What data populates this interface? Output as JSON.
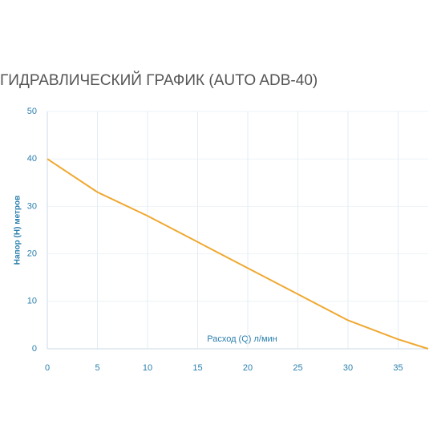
{
  "chart_data": {
    "type": "line",
    "title": "ГИДРАВЛИЧЕСКИЙ ГРАФИК (AUTO ADB-40)",
    "x_label": "Расход (Q) л/мин",
    "y_label": "Напор (H) метров",
    "x": [
      0,
      5,
      10,
      15,
      20,
      25,
      30,
      35,
      38
    ],
    "series": [
      {
        "name": "AUTO ADB-40",
        "color": "#f0a830",
        "values": [
          40,
          33,
          28,
          22.5,
          17,
          11.5,
          6,
          2,
          0
        ]
      }
    ],
    "xlim": [
      0,
      38
    ],
    "ylim": [
      0,
      50
    ],
    "xticks": [
      0,
      5,
      10,
      15,
      20,
      25,
      30,
      35
    ],
    "yticks": [
      0,
      10,
      20,
      30,
      40,
      50
    ],
    "grid": true
  }
}
